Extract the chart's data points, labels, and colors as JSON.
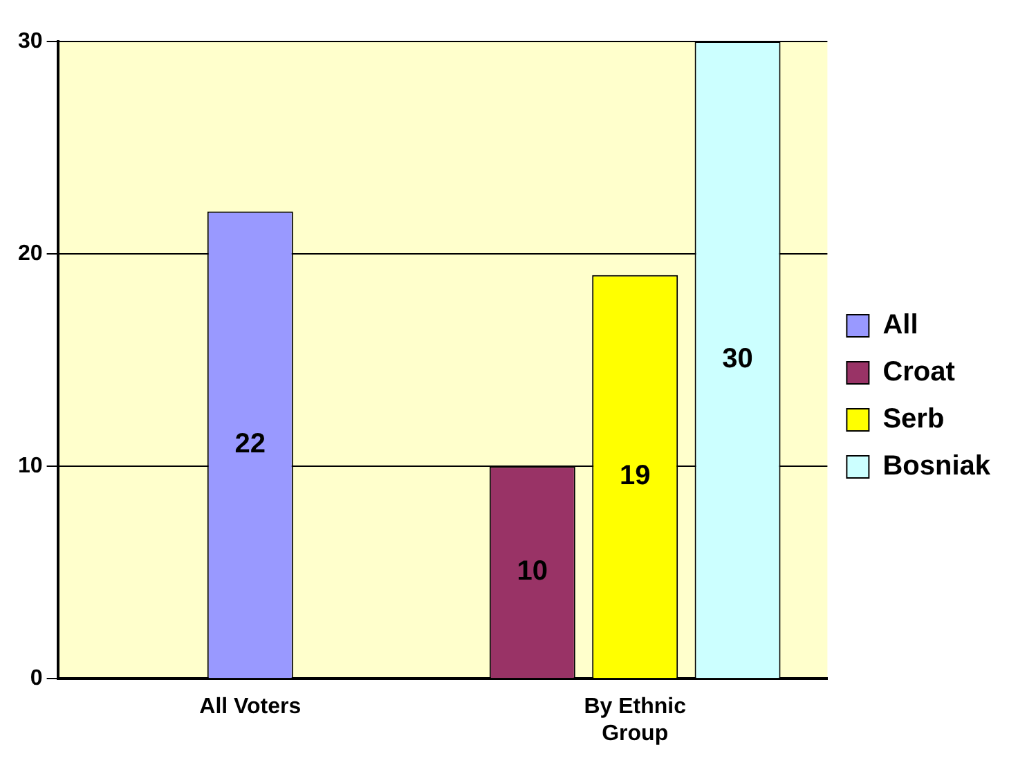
{
  "chart_data": {
    "type": "bar",
    "categories": [
      "All Voters",
      "By Ethnic Group"
    ],
    "series": [
      {
        "name": "All",
        "color": "#9999ff",
        "values": [
          22,
          null
        ]
      },
      {
        "name": "Croat",
        "color": "#993366",
        "values": [
          null,
          10
        ]
      },
      {
        "name": "Serb",
        "color": "#ffff00",
        "values": [
          null,
          19
        ]
      },
      {
        "name": "Bosniak",
        "color": "#ccffff",
        "values": [
          null,
          30
        ]
      }
    ],
    "ylim": [
      0,
      30
    ],
    "yticks": [
      0,
      10,
      20,
      30
    ],
    "grid": "y",
    "legend": "right",
    "data_labels": true
  }
}
